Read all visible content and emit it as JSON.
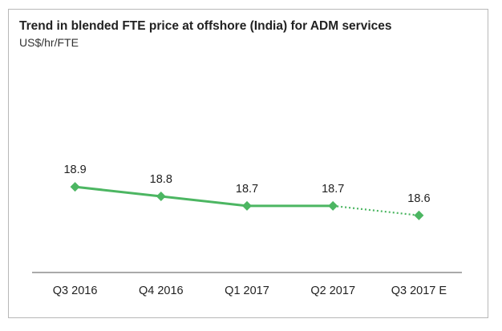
{
  "chart_data": {
    "type": "line",
    "title": "Trend in blended FTE price at offshore (India) for ADM services",
    "subtitle": "US$/hr/FTE",
    "categories": [
      "Q3 2016",
      "Q4 2016",
      "Q1 2017",
      "Q2 2017",
      "Q3 2017 E"
    ],
    "series": [
      {
        "values": [
          18.9,
          18.8,
          18.7,
          18.7,
          18.6
        ],
        "data_labels": [
          "18.9",
          "18.8",
          "18.7",
          "18.7",
          "18.6"
        ],
        "color": "#4cb662",
        "estimate_from_index": 3
      }
    ],
    "ylim": [
      18.0,
      19.6
    ],
    "grid": false,
    "legend": "none"
  }
}
